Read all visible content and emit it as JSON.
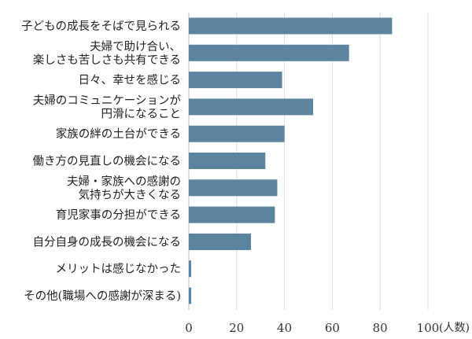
{
  "chart_data": {
    "type": "bar",
    "orientation": "horizontal",
    "categories": [
      [
        "子どもの成長をそばで見られる"
      ],
      [
        "夫婦で助け合い、",
        "楽しさも苦しさも共有できる"
      ],
      [
        "日々、幸せを感じる"
      ],
      [
        "夫婦のコミュニケーションが",
        "円滑になること"
      ],
      [
        "家族の絆の土台ができる"
      ],
      [
        "働き方の見直しの機会になる"
      ],
      [
        "夫婦・家族への感謝の",
        "気持ちが大きくなる"
      ],
      [
        "育児家事の分担ができる"
      ],
      [
        "自分自身の成長の機会になる"
      ],
      [
        "メリットは感じなかった"
      ],
      [
        "その他(職場への感謝が深まる)"
      ]
    ],
    "values": [
      85,
      67,
      39,
      52,
      40,
      32,
      37,
      36,
      26,
      1,
      1
    ],
    "xlim": [
      0,
      100
    ],
    "xticks": [
      0,
      20,
      40,
      60,
      80,
      100
    ],
    "x_unit": "(人数)",
    "grid": true,
    "colors": {
      "bar": "#5b84a0",
      "grid": "#dddddd",
      "text": "#222222"
    }
  }
}
